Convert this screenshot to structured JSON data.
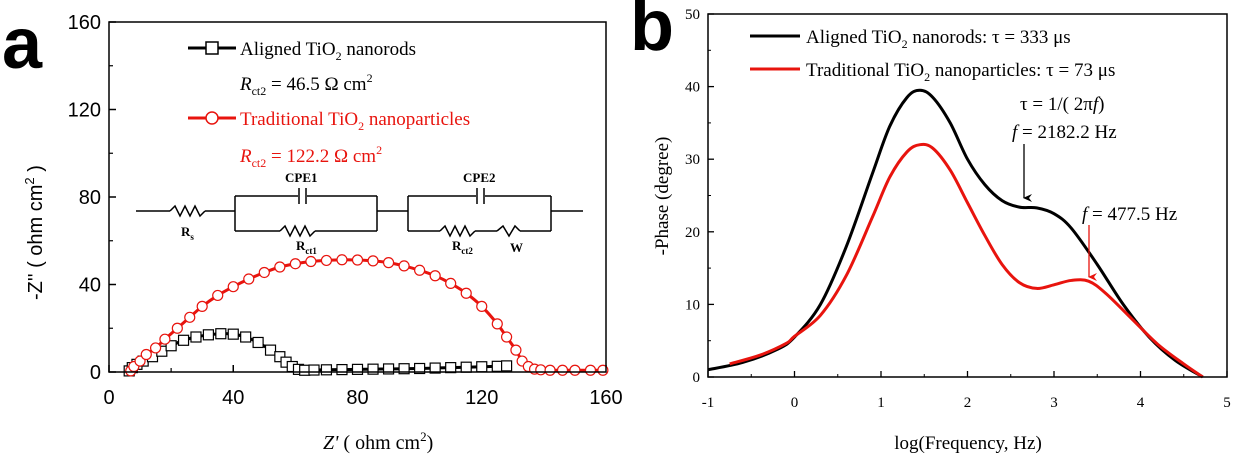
{
  "colors": {
    "black": "#000000",
    "red": "#e8140e",
    "red_dark": "#e03020"
  },
  "chart_data": [
    {
      "type": "scatter",
      "panel_label": "a",
      "xlabel_italic": "Z'",
      "xlabel_rest": " ( ohm cm",
      "xlabel_sup": "2",
      "xlabel_close": ")",
      "ylabel": "-Z'' ( ohm cm",
      "ylabel_sup": "2",
      "ylabel_close": " )",
      "xlim": [
        0,
        160
      ],
      "ylim": [
        0,
        160
      ],
      "xticks": [
        0,
        40,
        80,
        120,
        160
      ],
      "yticks": [
        0,
        40,
        80,
        120,
        160
      ],
      "legend": {
        "aligned": {
          "pre": "Aligned TiO",
          "sub": "2",
          "post": " nanorods"
        },
        "aligned_r": {
          "pre": "R",
          "sub": "ct2",
          "post": " = 46.5 Ω cm",
          "sup": "2"
        },
        "traditional": {
          "pre": "Traditional TiO",
          "sub": "2",
          "post": " nanoparticles"
        },
        "traditional_r": {
          "pre": "R",
          "sub": "ct2",
          "post": " = 122.2 Ω cm",
          "sup": "2"
        }
      },
      "circuit": {
        "rs": "R",
        "rs_sub": "s",
        "cpe1": "CPE1",
        "rct1": "R",
        "rct1_sub": "ct1",
        "cpe2": "CPE2",
        "rct2": "R",
        "rct2_sub": "ct2",
        "w": "W"
      },
      "series": [
        {
          "name": "Aligned TiO2 nanorods",
          "color": "#000000",
          "marker": "square",
          "x": [
            6.5,
            7.5,
            9,
            11,
            14,
            17,
            20,
            24,
            28,
            32,
            36,
            40,
            44,
            48,
            52,
            55,
            57,
            59,
            61,
            63,
            66,
            70,
            75,
            80,
            85,
            90,
            95,
            100,
            105,
            110,
            115,
            120,
            125,
            128
          ],
          "y": [
            0.5,
            2,
            3.5,
            5,
            7,
            9.5,
            12,
            14.5,
            16,
            17,
            17.5,
            17.3,
            16,
            13.5,
            10,
            7,
            4.5,
            2.5,
            1.2,
            0.8,
            0.9,
            1,
            1.1,
            1.2,
            1.3,
            1.4,
            1.5,
            1.6,
            1.8,
            2,
            2.2,
            2.4,
            2.6,
            2.8
          ]
        },
        {
          "name": "Traditional TiO2 nanoparticles",
          "color": "#e8140e",
          "marker": "circle",
          "x": [
            7,
            8,
            10,
            12,
            15,
            18,
            22,
            26,
            30,
            35,
            40,
            45,
            50,
            55,
            60,
            65,
            70,
            75,
            80,
            85,
            90,
            95,
            100,
            105,
            110,
            115,
            120,
            125,
            128,
            131,
            133,
            135,
            137,
            139,
            142,
            146,
            150,
            155,
            159
          ],
          "y": [
            0.5,
            2.5,
            5,
            8,
            11,
            15,
            20,
            25,
            30,
            35,
            39,
            42.5,
            45.5,
            48,
            49.5,
            50.5,
            51,
            51.3,
            51.2,
            50.8,
            50,
            48.5,
            46.5,
            44,
            40.5,
            36,
            30,
            22,
            16,
            10,
            5,
            2.5,
            1.3,
            1,
            0.8,
            0.8,
            0.8,
            0.8,
            0.8
          ]
        }
      ]
    },
    {
      "type": "line",
      "panel_label": "b",
      "xlabel": "log(Frequency, Hz)",
      "ylabel": "-Phase (degree)",
      "xlim": [
        -1,
        5
      ],
      "ylim": [
        0,
        50
      ],
      "xticks": [
        -1,
        0,
        1,
        2,
        3,
        4,
        5
      ],
      "yticks": [
        0,
        10,
        20,
        30,
        40,
        50
      ],
      "legend": {
        "aligned": {
          "pre": "Aligned TiO",
          "sub": "2",
          "post": " nanorods: τ = 333 μs"
        },
        "traditional": {
          "pre": "Traditional TiO",
          "sub": "2",
          "post": " nanoparticles: τ = 73 μs"
        }
      },
      "annotations": {
        "tau": "τ = 1/( 2π",
        "tau_f": "f",
        "tau_close": ")",
        "f1_var": "f",
        "f1_val": " = 2182.2 Hz",
        "f2_var": "f",
        "f2_val": " = 477.5 Hz"
      },
      "series": [
        {
          "name": "Aligned TiO2 nanorods",
          "color": "#000000",
          "x": [
            -1,
            -0.6,
            -0.2,
            0,
            0.3,
            0.6,
            0.9,
            1.1,
            1.3,
            1.45,
            1.6,
            1.8,
            2.0,
            2.2,
            2.4,
            2.6,
            2.8,
            3.0,
            3.2,
            3.5,
            3.8,
            4.1,
            4.4,
            4.72
          ],
          "y": [
            1,
            2,
            3.8,
            5.5,
            10,
            18,
            28,
            34.5,
            38.5,
            39.5,
            38.5,
            35,
            30,
            26.5,
            24.3,
            23.4,
            23.3,
            22.5,
            20.5,
            15.5,
            10,
            5.5,
            2.3,
            0
          ]
        },
        {
          "name": "Traditional TiO2 nanoparticles",
          "color": "#e8140e",
          "x": [
            -0.75,
            -0.4,
            -0.1,
            0,
            0.3,
            0.6,
            0.9,
            1.1,
            1.3,
            1.45,
            1.6,
            1.8,
            2.0,
            2.2,
            2.4,
            2.6,
            2.8,
            3.0,
            3.2,
            3.4,
            3.6,
            3.9,
            4.2,
            4.5,
            4.72
          ],
          "y": [
            1.8,
            3,
            4.6,
            5.6,
            8.5,
            14,
            22,
            27.5,
            31,
            32,
            31.5,
            28.5,
            24,
            19.5,
            15.5,
            13,
            12.2,
            12.7,
            13.3,
            13.2,
            11.5,
            8,
            4.5,
            1.8,
            0
          ]
        }
      ]
    }
  ]
}
